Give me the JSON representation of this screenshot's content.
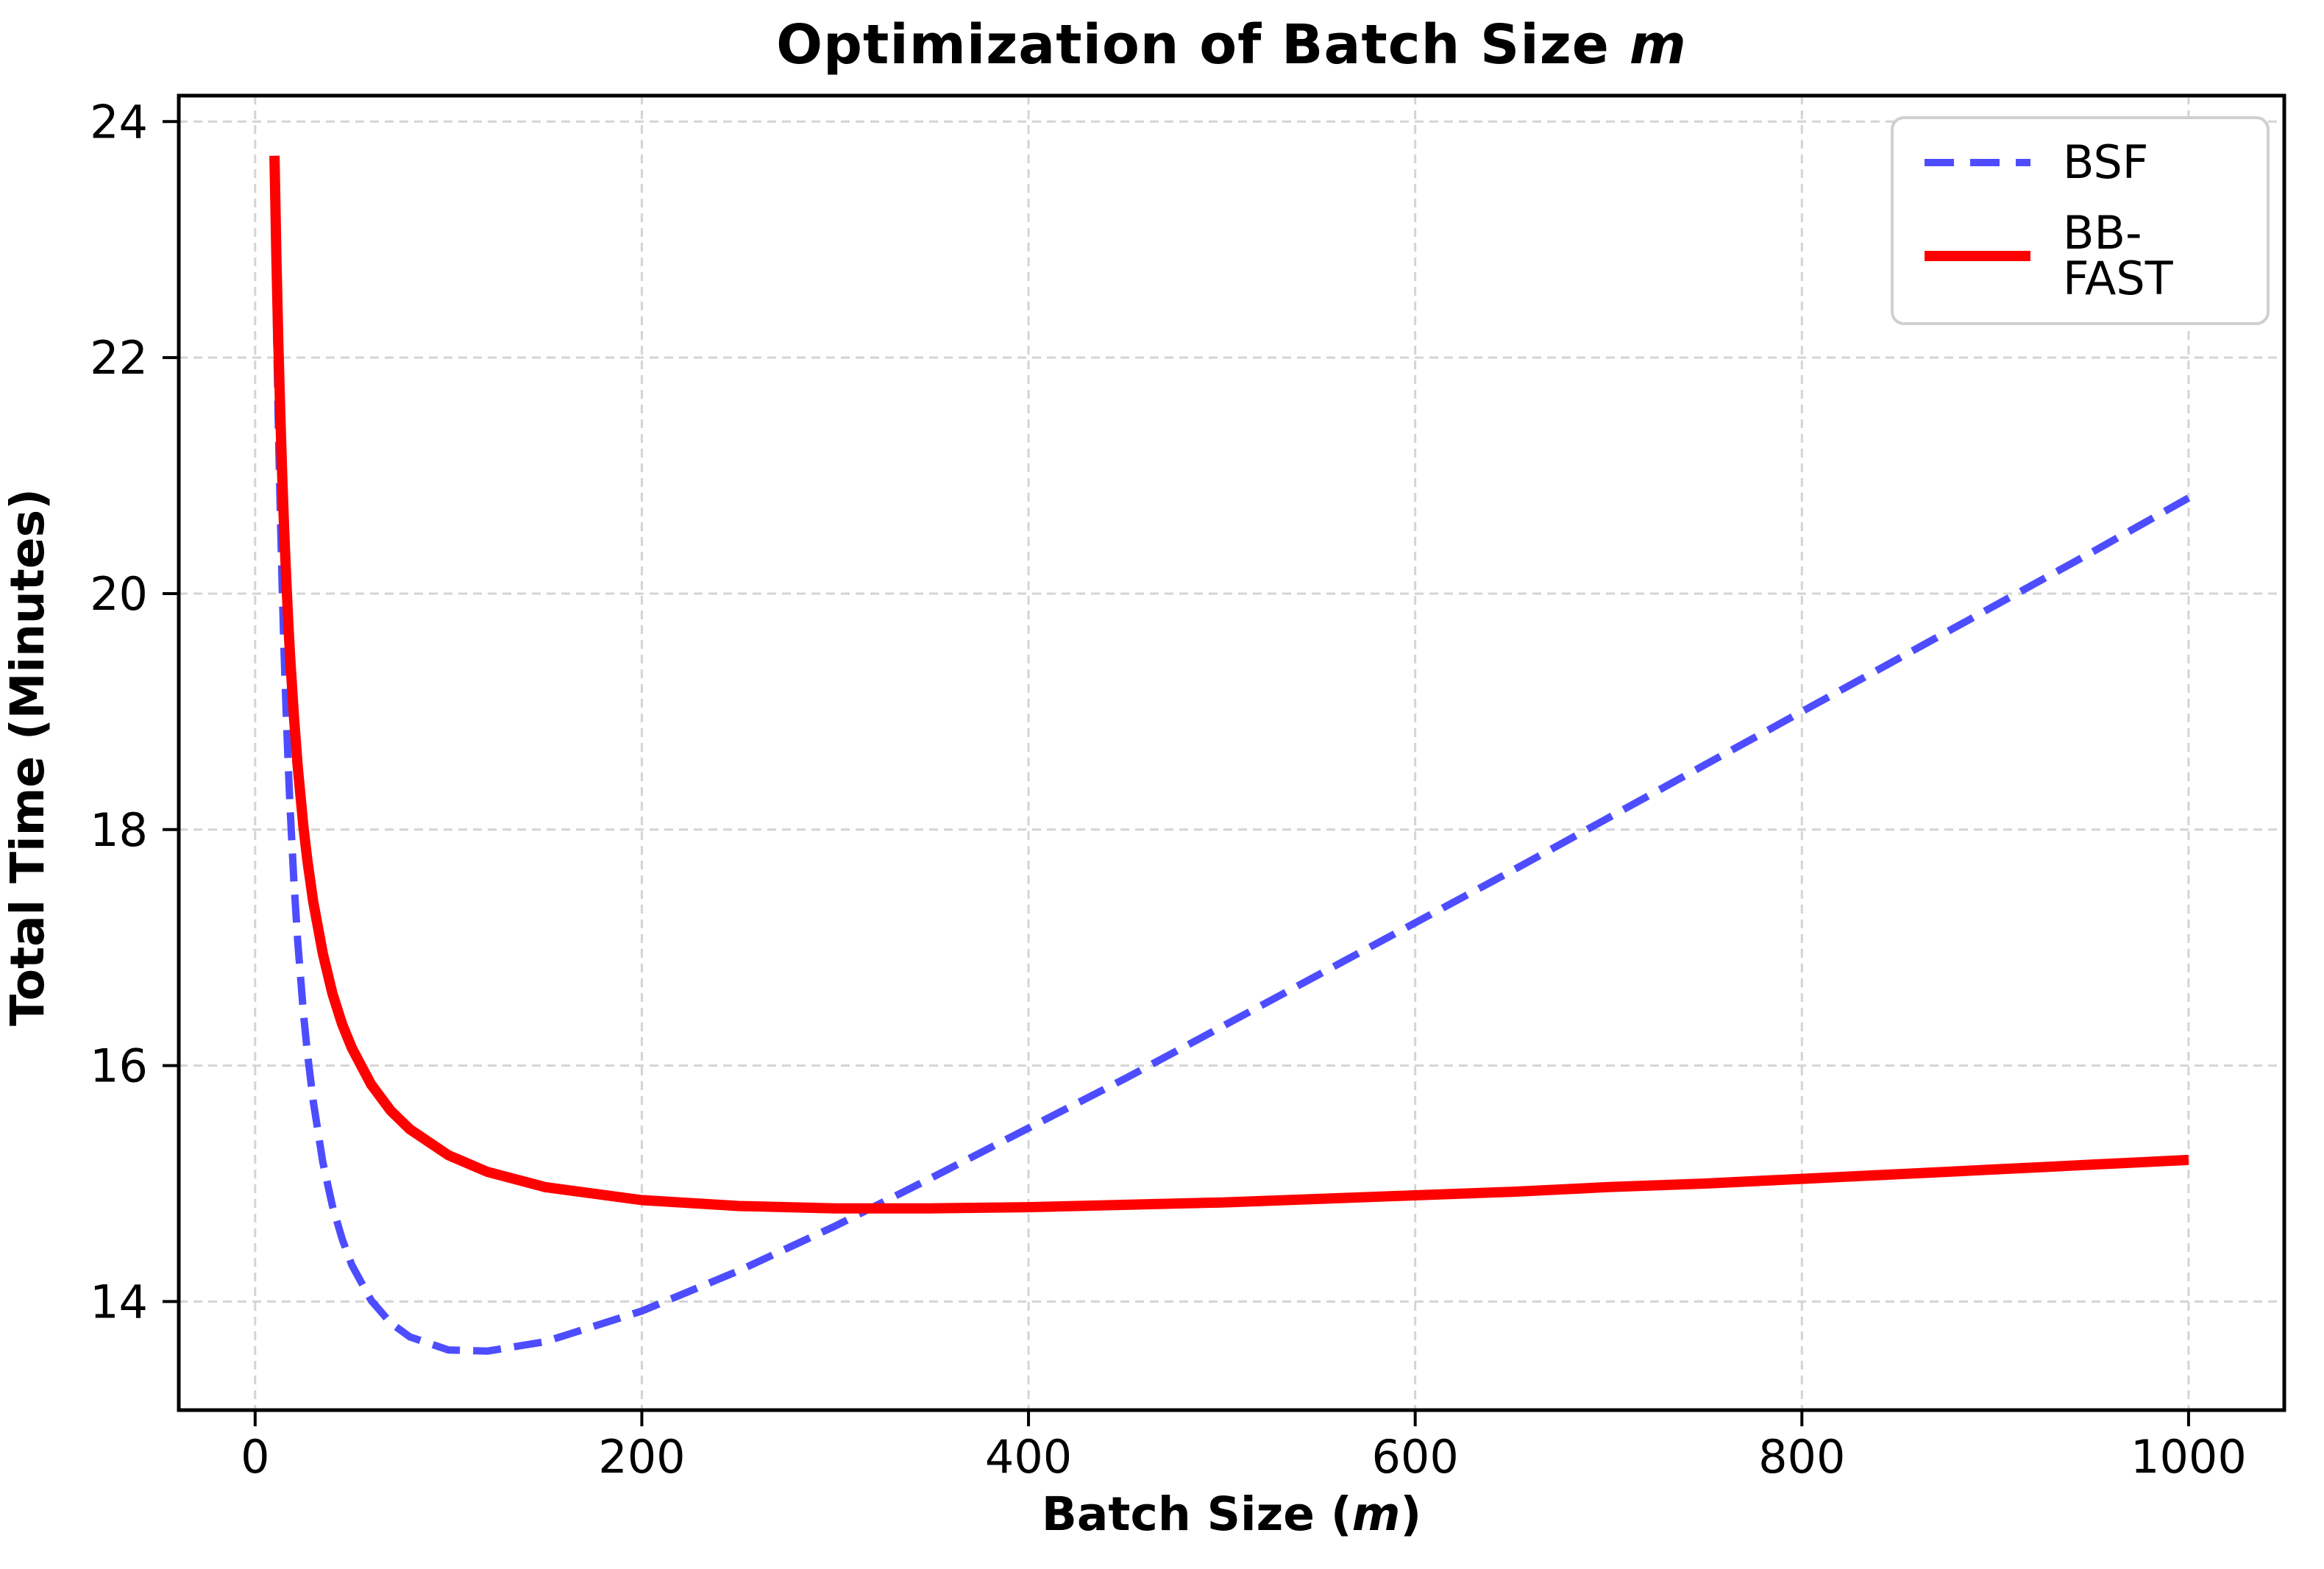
{
  "figure": {
    "title_main": "Optimization of Batch Size",
    "title_var": "m",
    "xlabel_pre": "Batch Size (",
    "xlabel_var": "m",
    "xlabel_post": ")",
    "ylabel": "Total Time (Minutes)"
  },
  "chart_data": {
    "type": "line",
    "title": "Optimization of Batch Size m",
    "xlabel": "Batch Size (m)",
    "ylabel": "Total Time (Minutes)",
    "xlim": [
      -39.5,
      1049.5
    ],
    "ylim": [
      13.08,
      24.22
    ],
    "x_ticks": [
      0,
      200,
      400,
      600,
      800,
      1000
    ],
    "y_ticks": [
      14,
      16,
      18,
      20,
      22,
      24
    ],
    "grid": true,
    "grid_color": "#d4d4d4",
    "legend_position": "upper right",
    "x": [
      10,
      11,
      12,
      13,
      14,
      15,
      16,
      17,
      18,
      20,
      22,
      25,
      27,
      30,
      35,
      40,
      45,
      50,
      60,
      70,
      80,
      100,
      120,
      150,
      200,
      250,
      300,
      350,
      400,
      450,
      500,
      550,
      600,
      650,
      700,
      750,
      800,
      850,
      900,
      950,
      1000
    ],
    "series": [
      {
        "name": "BSF",
        "color": "#4d4dff",
        "style": "dashed",
        "linewidth": 10,
        "values": [
          23.38,
          22.32,
          21.43,
          20.69,
          20.05,
          19.49,
          19.01,
          18.59,
          18.21,
          17.57,
          17.06,
          16.44,
          16.11,
          15.7,
          15.18,
          14.81,
          14.53,
          14.31,
          14.01,
          13.82,
          13.7,
          13.59,
          13.58,
          13.66,
          13.92,
          14.26,
          14.64,
          15.05,
          15.47,
          15.89,
          16.33,
          16.77,
          17.21,
          17.65,
          18.1,
          18.55,
          19.0,
          19.45,
          19.9,
          20.35,
          20.81
        ]
      },
      {
        "name": "BB-FAST",
        "color": "#ff0000",
        "style": "solid",
        "linewidth": 14,
        "values": [
          23.71,
          22.85,
          22.13,
          21.52,
          21.0,
          20.55,
          20.15,
          19.8,
          19.49,
          18.97,
          18.54,
          18.02,
          17.74,
          17.39,
          16.95,
          16.61,
          16.35,
          16.15,
          15.84,
          15.62,
          15.46,
          15.24,
          15.1,
          14.97,
          14.86,
          14.81,
          14.79,
          14.79,
          14.8,
          14.82,
          14.84,
          14.87,
          14.9,
          14.93,
          14.97,
          15.0,
          15.04,
          15.08,
          15.12,
          15.16,
          15.2
        ]
      }
    ],
    "annotations": {
      "bsf_min": {
        "m": 113,
        "t": 13.58
      },
      "bbfast_min": {
        "m": 325,
        "t": 14.79
      },
      "crossing": {
        "m": 318,
        "t": 14.86
      }
    }
  }
}
